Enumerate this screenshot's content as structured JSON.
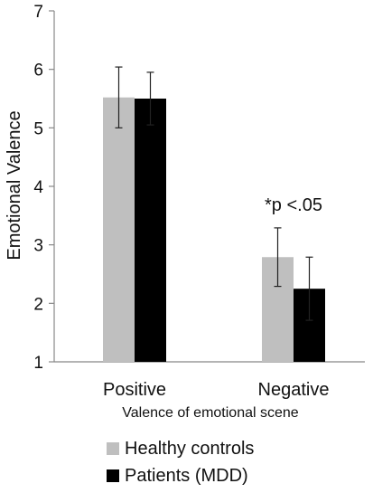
{
  "chart_data": {
    "type": "bar",
    "categories": [
      "Positive",
      "Negative"
    ],
    "series": [
      {
        "name": "Healthy controls",
        "values": [
          5.52,
          2.79
        ],
        "errors": [
          0.52,
          0.5
        ],
        "color": "#bfbfbf"
      },
      {
        "name": "Patients (MDD)",
        "values": [
          5.5,
          2.25
        ],
        "errors": [
          0.45,
          0.54
        ],
        "color": "#000000"
      }
    ],
    "ylabel": "Emotional Valence",
    "xlabel": "Valence of emotional scene",
    "ylim": [
      1,
      7
    ],
    "yticks": [
      1,
      2,
      3,
      4,
      5,
      6,
      7
    ],
    "annotation": "*p <.05",
    "legend_position": "bottom"
  }
}
